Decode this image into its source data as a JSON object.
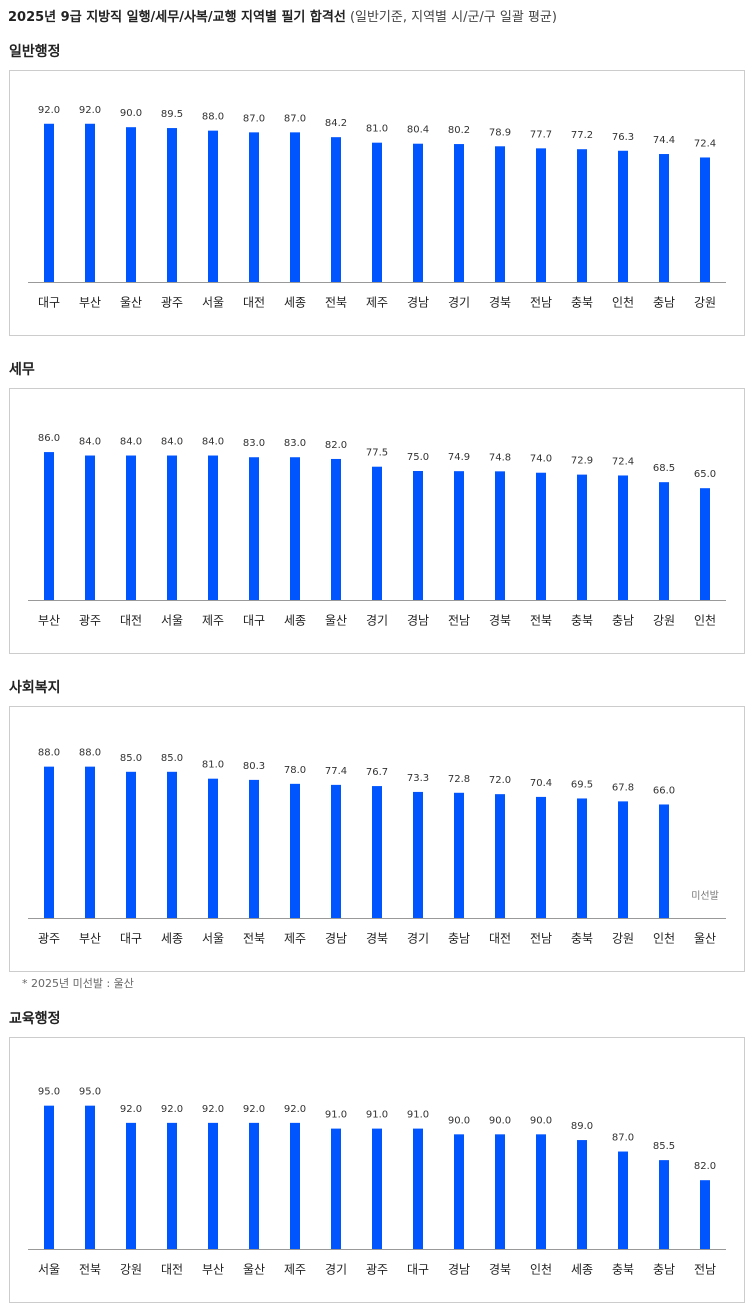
{
  "title": "2025년 9급 지방직 일행/세무/사복/교행 지역별 필기 합격선",
  "subtitle": "(일반기준, 지역별 시/군/구 일괄 평균)",
  "footnote": "* 2025년 미선발 : 울산",
  "chart_data": [
    {
      "type": "bar",
      "title": "일반행정",
      "color": "#0055ff",
      "ylim": [
        0,
        100
      ],
      "categories": [
        "대구",
        "부산",
        "울산",
        "광주",
        "서울",
        "대전",
        "세종",
        "전북",
        "제주",
        "경남",
        "경기",
        "경북",
        "전남",
        "충북",
        "인천",
        "충남",
        "강원"
      ],
      "values": [
        92,
        92,
        90,
        89.5,
        88,
        87,
        87,
        84.2,
        81,
        80.4,
        80.2,
        78.9,
        77.7,
        77.2,
        76.3,
        74.4,
        72.4
      ],
      "value_labels": [
        "92.0",
        "92.0",
        "90.0",
        "89.5",
        "88.0",
        "87.0",
        "87.0",
        "84.2",
        "81.0",
        "80.4",
        "80.2",
        "78.9",
        "77.7",
        "77.2",
        "76.3",
        "74.4",
        "72.4"
      ]
    },
    {
      "type": "bar",
      "title": "세무",
      "color": "#0055ff",
      "ylim": [
        0,
        100
      ],
      "categories": [
        "부산",
        "광주",
        "대전",
        "서울",
        "제주",
        "대구",
        "세종",
        "울산",
        "경기",
        "경남",
        "전남",
        "경북",
        "전북",
        "충북",
        "충남",
        "강원",
        "인천"
      ],
      "values": [
        86,
        84,
        84,
        84,
        84,
        83,
        83,
        82,
        77.5,
        75,
        74.9,
        74.8,
        74,
        72.9,
        72.4,
        68.5,
        65
      ],
      "value_labels": [
        "86.0",
        "84.0",
        "84.0",
        "84.0",
        "84.0",
        "83.0",
        "83.0",
        "82.0",
        "77.5",
        "75.0",
        "74.9",
        "74.8",
        "74.0",
        "72.9",
        "72.4",
        "68.5",
        "65.0"
      ]
    },
    {
      "type": "bar",
      "title": "사회복지",
      "color": "#0055ff",
      "ylim": [
        0,
        100
      ],
      "categories": [
        "광주",
        "부산",
        "대구",
        "세종",
        "서울",
        "전북",
        "제주",
        "경남",
        "경북",
        "경기",
        "충남",
        "대전",
        "전남",
        "충북",
        "강원",
        "인천",
        "울산"
      ],
      "values": [
        88,
        88,
        85,
        85,
        81,
        80.3,
        78,
        77.4,
        76.7,
        73.3,
        72.8,
        72,
        70.4,
        69.5,
        67.8,
        66,
        null
      ],
      "value_labels": [
        "88.0",
        "88.0",
        "85.0",
        "85.0",
        "81.0",
        "80.3",
        "78.0",
        "77.4",
        "76.7",
        "73.3",
        "72.8",
        "72.0",
        "70.4",
        "69.5",
        "67.8",
        "66.0",
        null
      ],
      "annotation": "미선발"
    },
    {
      "type": "bar",
      "title": "교육행정",
      "color": "#0055ff",
      "ylim": [
        70,
        100
      ],
      "categories": [
        "서울",
        "전북",
        "강원",
        "대전",
        "부산",
        "울산",
        "제주",
        "경기",
        "광주",
        "대구",
        "경남",
        "경북",
        "인천",
        "세종",
        "충북",
        "충남",
        "전남"
      ],
      "values": [
        95,
        95,
        92,
        92,
        92,
        92,
        92,
        91,
        91,
        91,
        90,
        90,
        90,
        89,
        87,
        85.5,
        82
      ],
      "value_labels": [
        "95.0",
        "95.0",
        "92.0",
        "92.0",
        "92.0",
        "92.0",
        "92.0",
        "91.0",
        "91.0",
        "91.0",
        "90.0",
        "90.0",
        "90.0",
        "89.0",
        "87.0",
        "85.5",
        "82.0"
      ]
    }
  ]
}
